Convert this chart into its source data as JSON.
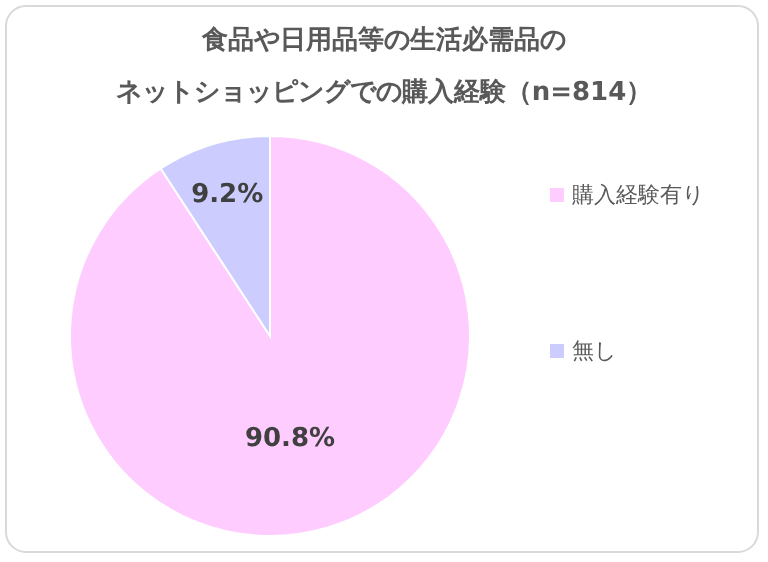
{
  "chart_data": {
    "type": "pie",
    "title": "食品や日用品等の生活必需品の",
    "subtitle": "ネットショッピングでの購入経験（n=814）",
    "categories": [
      "購入経験有り",
      "無し"
    ],
    "values": [
      90.8,
      9.2
    ],
    "colors": [
      "#ffccff",
      "#ccccff"
    ],
    "value_labels": [
      "90.8%",
      "9.2%"
    ],
    "legend": "right"
  }
}
